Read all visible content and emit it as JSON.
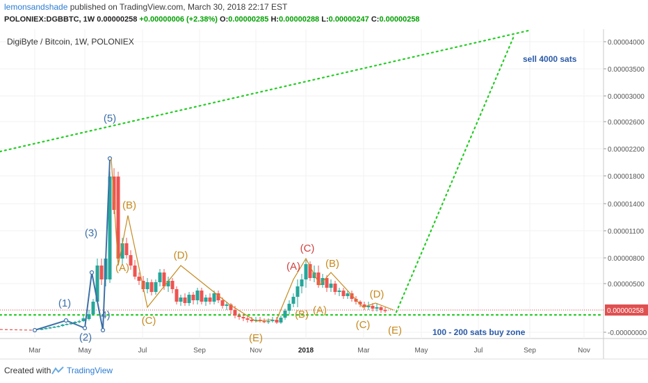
{
  "header": {
    "author": "lemonsandshade",
    "published": " published on TradingView.com, March 30, 2018 22:17 EST",
    "symbol": "POLONIEX:DGBBTC, 1W",
    "last": "0.00000258",
    "change": "+0.00000006 (+2.38%)",
    "o_label": "O:",
    "o_val": "0.00000285",
    "h_label": "H:",
    "h_val": "0.00000288",
    "l_label": "L:",
    "l_val": "0.00000247",
    "c_label": "C:",
    "c_val": "0.00000258"
  },
  "footer": {
    "created": "Created with",
    "brand": "TradingView"
  },
  "chart_data": {
    "type": "candlestick",
    "title": "DigiByte / Bitcoin, 1W, POLONIEX",
    "x_ticks": [
      "Mar",
      "May",
      "Jul",
      "Sep",
      "Nov",
      "2018",
      "Mar",
      "May",
      "Jul",
      "Sep",
      "Nov"
    ],
    "y_ticks": [
      "0.00004000",
      "0.00003500",
      "0.00003000",
      "0.00002600",
      "0.00002200",
      "0.00001800",
      "0.00001400",
      "0.00001100",
      "0.00000800",
      "0.00000500",
      "0.00000258",
      "-0.00000000"
    ],
    "y_scale": "log",
    "ylim": [
      0,
      4e-05
    ],
    "current_price_label": "0.00000258",
    "colors": {
      "up": "#26a69a",
      "down": "#ef5350",
      "elliott": "#3d6fa8",
      "corrective": "#c68a1f",
      "target": "#22cc22",
      "price_line": "#e05050"
    },
    "candles_weekly_approx": [
      {
        "x": "Mar 2017",
        "o": 2.5e-07,
        "c": 4e-07
      },
      {
        "x": "Apr 2017",
        "o": 4e-07,
        "c": 7e-07
      },
      {
        "x": "May 2017",
        "o": 7e-07,
        "c": 1.2e-05
      },
      {
        "x": "May 2017",
        "o": 4e-06,
        "c": 2.1e-05
      },
      {
        "x": "Jun 2017",
        "o": 2.1e-05,
        "c": 8e-06
      },
      {
        "x": "Jul 2017",
        "o": 8e-06,
        "c": 4e-06
      },
      {
        "x": "Aug 2017",
        "o": 4e-06,
        "c": 7e-06
      },
      {
        "x": "Sep 2017",
        "o": 6e-06,
        "c": 3.5e-06
      },
      {
        "x": "Oct 2017",
        "o": 3.5e-06,
        "c": 2e-06
      },
      {
        "x": "Nov 2017",
        "o": 1.5e-06,
        "c": 1.2e-06
      },
      {
        "x": "Dec 2017",
        "o": 1.2e-06,
        "c": 6e-06
      },
      {
        "x": "Jan 2018",
        "o": 6e-06,
        "c": 9e-06
      },
      {
        "x": "Feb 2018",
        "o": 6e-06,
        "c": 4e-06
      },
      {
        "x": "Mar 2018",
        "o": 2.8e-06,
        "c": 2.6e-06
      }
    ],
    "annotations": {
      "impulse": [
        "(1)",
        "(2)",
        "(3)",
        "4)",
        "(5)"
      ],
      "correction_2017": [
        "(A)",
        "(B)",
        "(C)",
        "(D)",
        "(E)"
      ],
      "correction_2018": [
        "(A)",
        "(B)",
        "(C)",
        "(A)",
        "(B)",
        "(C)",
        "(D)",
        "(E)"
      ],
      "sell_text": "sell 4000 sats",
      "buy_text": "100 - 200 sats buy zone"
    }
  }
}
